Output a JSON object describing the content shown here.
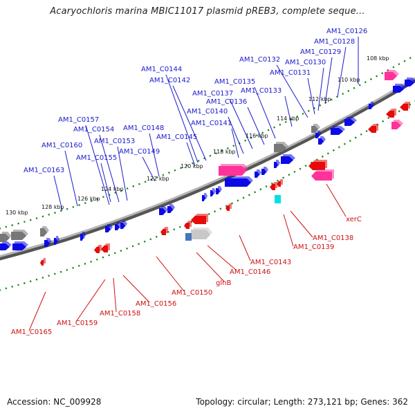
{
  "title": "Acaryochloris marina MBIC11017 plasmid pREB3, complete seque...",
  "footer": {
    "accession": "Accession: NC_009928",
    "summary": "Topology: circular; Length: 273,121 bp; Genes: 362"
  },
  "colors": {
    "forward_gene": "#0a0ae6",
    "reverse_gene": "#e60a0a",
    "trna": "#ff3399",
    "other": "#777777",
    "backbone": "#8a8a8a",
    "tick_marks": "#1a8a1a",
    "forward_label": "#1a1acc",
    "reverse_label": "#d01010"
  },
  "tick_labels": [
    "130 kbp",
    "128 kbp",
    "126 kbp",
    "124 kbp",
    "122 kbp",
    "120 kbp",
    "118 kbp",
    "116 kbp",
    "114 kbp",
    "112 kbp",
    "110 kbp",
    "108 kbp"
  ],
  "forward_labels": [
    "AM1_C0126",
    "AM1_C0128",
    "AM1_C0129",
    "AM1_C0130",
    "AM1_C0131",
    "AM1_C0132",
    "AM1_C0133",
    "AM1_C0135",
    "AM1_C0136",
    "AM1_C0137",
    "AM1_C0140",
    "AM1_C0141",
    "AM1_C0142",
    "AM1_C0144",
    "AM1_C0145",
    "AM1_C0148",
    "AM1_C0149",
    "AM1_C0153",
    "AM1_C0154",
    "AM1_C0155",
    "AM1_C0157",
    "AM1_C0160",
    "AM1_C0163"
  ],
  "reverse_labels": [
    "xerC",
    "AM1_C0138",
    "AM1_C0139",
    "AM1_C0143",
    "AM1_C0146",
    "glnB",
    "AM1_C0150",
    "AM1_C0156",
    "AM1_C0158",
    "AM1_C0159",
    "AM1_C0165"
  ]
}
